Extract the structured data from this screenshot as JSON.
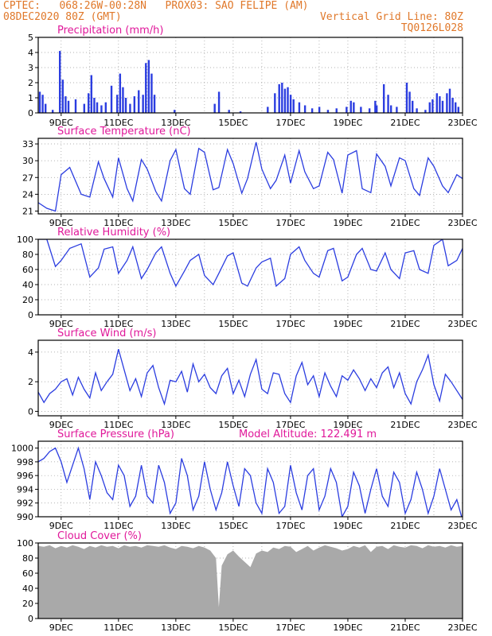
{
  "header": {
    "line1": "CPTEC:   068:26W-00:28N   PROX03: SAO FELIPE (AM)",
    "line2": "08DEC2020 80Z (GMT)",
    "right1": "Vertical Grid Line: 80Z",
    "right2": "TQ0126L028",
    "color": "#e0782a"
  },
  "colors": {
    "title": "#e0189a",
    "series": "#2b3de0",
    "cloud": "#a9a9a9",
    "grid": "#999999"
  },
  "x_ticks": [
    "9DEC",
    "11DEC",
    "13DEC",
    "15DEC",
    "17DEC",
    "19DEC",
    "21DEC",
    "23DEC"
  ],
  "chart_data": [
    {
      "type": "bar",
      "title": "Precipitation (mm/h)",
      "ylim": [
        0,
        5
      ],
      "yticks": [
        0,
        1,
        2,
        3,
        4,
        5
      ],
      "x_range_days": [
        8.2,
        23.0
      ],
      "values": [
        [
          8.25,
          1.4
        ],
        [
          8.35,
          1.2
        ],
        [
          8.45,
          0.6
        ],
        [
          8.7,
          0.2
        ],
        [
          8.95,
          4.1
        ],
        [
          9.05,
          2.2
        ],
        [
          9.15,
          1.1
        ],
        [
          9.25,
          0.8
        ],
        [
          9.5,
          0.9
        ],
        [
          9.8,
          0.6
        ],
        [
          9.95,
          1.3
        ],
        [
          10.05,
          2.5
        ],
        [
          10.15,
          1.0
        ],
        [
          10.25,
          0.7
        ],
        [
          10.4,
          0.5
        ],
        [
          10.55,
          0.7
        ],
        [
          10.75,
          1.8
        ],
        [
          10.95,
          1.2
        ],
        [
          11.05,
          2.6
        ],
        [
          11.15,
          1.7
        ],
        [
          11.25,
          1.0
        ],
        [
          11.4,
          0.6
        ],
        [
          11.55,
          1.1
        ],
        [
          11.7,
          1.5
        ],
        [
          11.85,
          1.2
        ],
        [
          11.95,
          3.3
        ],
        [
          12.05,
          3.5
        ],
        [
          12.15,
          2.6
        ],
        [
          12.25,
          1.2
        ],
        [
          12.95,
          0.2
        ],
        [
          14.35,
          0.6
        ],
        [
          14.5,
          1.4
        ],
        [
          14.85,
          0.2
        ],
        [
          15.25,
          0.1
        ],
        [
          16.2,
          0.4
        ],
        [
          16.45,
          1.3
        ],
        [
          16.6,
          1.9
        ],
        [
          16.7,
          2.0
        ],
        [
          16.8,
          1.6
        ],
        [
          16.9,
          1.7
        ],
        [
          17.0,
          1.2
        ],
        [
          17.1,
          0.9
        ],
        [
          17.3,
          0.7
        ],
        [
          17.5,
          0.5
        ],
        [
          17.75,
          0.3
        ],
        [
          18.0,
          0.4
        ],
        [
          18.3,
          0.2
        ],
        [
          18.6,
          0.3
        ],
        [
          18.95,
          0.4
        ],
        [
          19.1,
          0.8
        ],
        [
          19.2,
          0.7
        ],
        [
          19.45,
          0.4
        ],
        [
          19.75,
          0.3
        ],
        [
          19.95,
          0.8
        ],
        [
          20.0,
          0.5
        ],
        [
          20.25,
          1.9
        ],
        [
          20.4,
          1.2
        ],
        [
          20.5,
          0.5
        ],
        [
          20.7,
          0.4
        ],
        [
          21.05,
          2.0
        ],
        [
          21.15,
          1.4
        ],
        [
          21.25,
          0.8
        ],
        [
          21.4,
          0.3
        ],
        [
          21.7,
          0.2
        ],
        [
          21.85,
          0.7
        ],
        [
          21.95,
          0.9
        ],
        [
          22.1,
          1.3
        ],
        [
          22.2,
          1.1
        ],
        [
          22.3,
          0.8
        ],
        [
          22.45,
          1.3
        ],
        [
          22.55,
          1.6
        ],
        [
          22.65,
          1.0
        ],
        [
          22.75,
          0.7
        ],
        [
          22.85,
          0.4
        ]
      ]
    },
    {
      "type": "line",
      "title": "Surface Temperature (nC)",
      "ylim": [
        20.5,
        34
      ],
      "yticks": [
        21,
        24,
        27,
        30,
        33
      ],
      "x": [
        8.2,
        8.5,
        8.8,
        9.0,
        9.3,
        9.7,
        10.0,
        10.3,
        10.5,
        10.8,
        11.0,
        11.3,
        11.5,
        11.8,
        12.0,
        12.3,
        12.5,
        12.8,
        13.0,
        13.3,
        13.5,
        13.8,
        14.0,
        14.3,
        14.5,
        14.8,
        15.0,
        15.3,
        15.5,
        15.8,
        16.0,
        16.3,
        16.5,
        16.8,
        17.0,
        17.3,
        17.5,
        17.8,
        18.0,
        18.3,
        18.5,
        18.8,
        19.0,
        19.3,
        19.5,
        19.8,
        20.0,
        20.3,
        20.5,
        20.8,
        21.0,
        21.3,
        21.5,
        21.8,
        22.0,
        22.3,
        22.5,
        22.8,
        23.0
      ],
      "y": [
        22.5,
        21.5,
        21.0,
        27.5,
        28.8,
        24.0,
        23.5,
        29.8,
        26.8,
        23.5,
        30.5,
        25.0,
        22.8,
        30.2,
        28.5,
        24.5,
        22.8,
        30.0,
        32.0,
        25.0,
        24.0,
        32.2,
        31.5,
        24.8,
        25.2,
        32.0,
        29.5,
        24.2,
        26.8,
        33.3,
        28.5,
        25.0,
        26.5,
        31.0,
        26.0,
        31.8,
        28.0,
        25.0,
        25.5,
        31.5,
        30.2,
        24.2,
        31.0,
        31.8,
        25.0,
        24.3,
        31.2,
        29.0,
        25.5,
        30.5,
        30.0,
        25.0,
        23.8,
        30.5,
        29.0,
        25.5,
        24.3,
        27.5,
        26.8
      ]
    },
    {
      "type": "line",
      "title": "Relative Humidity (%)",
      "ylim": [
        0,
        100
      ],
      "yticks": [
        0,
        20,
        40,
        60,
        80,
        100
      ],
      "x": [
        8.2,
        8.5,
        8.8,
        9.0,
        9.3,
        9.7,
        10.0,
        10.3,
        10.5,
        10.8,
        11.0,
        11.3,
        11.5,
        11.8,
        12.0,
        12.3,
        12.5,
        12.8,
        13.0,
        13.3,
        13.5,
        13.8,
        14.0,
        14.3,
        14.5,
        14.8,
        15.0,
        15.3,
        15.5,
        15.8,
        16.0,
        16.3,
        16.5,
        16.8,
        17.0,
        17.3,
        17.5,
        17.8,
        18.0,
        18.3,
        18.5,
        18.8,
        19.0,
        19.3,
        19.5,
        19.8,
        20.0,
        20.3,
        20.5,
        20.8,
        21.0,
        21.3,
        21.5,
        21.8,
        22.0,
        22.3,
        22.5,
        22.8,
        23.0
      ],
      "y": [
        100,
        100,
        64,
        72,
        88,
        94,
        50,
        62,
        87,
        90,
        55,
        72,
        90,
        48,
        60,
        82,
        90,
        55,
        38,
        58,
        72,
        80,
        52,
        40,
        55,
        78,
        82,
        42,
        38,
        62,
        70,
        75,
        38,
        48,
        80,
        90,
        72,
        55,
        50,
        85,
        88,
        45,
        50,
        80,
        88,
        60,
        58,
        82,
        60,
        48,
        82,
        85,
        60,
        55,
        92,
        100,
        65,
        72,
        88
      ]
    },
    {
      "type": "line",
      "title": "Surface Wind (m/s)",
      "ylim": [
        -0.3,
        4.8
      ],
      "yticks": [
        0,
        2,
        4
      ],
      "x": [
        8.2,
        8.4,
        8.6,
        8.8,
        9.0,
        9.2,
        9.4,
        9.6,
        9.8,
        10.0,
        10.2,
        10.4,
        10.6,
        10.8,
        11.0,
        11.2,
        11.4,
        11.6,
        11.8,
        12.0,
        12.2,
        12.4,
        12.6,
        12.8,
        13.0,
        13.2,
        13.4,
        13.6,
        13.8,
        14.0,
        14.2,
        14.4,
        14.6,
        14.8,
        15.0,
        15.2,
        15.4,
        15.6,
        15.8,
        16.0,
        16.2,
        16.4,
        16.6,
        16.8,
        17.0,
        17.2,
        17.4,
        17.6,
        17.8,
        18.0,
        18.2,
        18.4,
        18.6,
        18.8,
        19.0,
        19.2,
        19.4,
        19.6,
        19.8,
        20.0,
        20.2,
        20.4,
        20.6,
        20.8,
        21.0,
        21.2,
        21.4,
        21.6,
        21.8,
        22.0,
        22.2,
        22.4,
        22.6,
        22.8,
        23.0
      ],
      "y": [
        1.3,
        0.6,
        1.2,
        1.5,
        2.0,
        2.2,
        1.1,
        2.3,
        1.5,
        0.9,
        2.6,
        1.4,
        2.0,
        2.5,
        4.2,
        2.8,
        1.4,
        2.2,
        1.0,
        2.6,
        3.1,
        1.6,
        0.5,
        2.1,
        2.0,
        2.7,
        1.3,
        3.2,
        2.0,
        2.5,
        1.6,
        1.2,
        2.4,
        2.9,
        1.2,
        2.1,
        1.0,
        2.5,
        3.5,
        1.5,
        1.2,
        2.6,
        2.5,
        1.2,
        0.6,
        2.4,
        3.3,
        1.8,
        2.4,
        1.0,
        2.6,
        1.7,
        1.0,
        2.4,
        2.1,
        2.8,
        2.2,
        1.4,
        2.2,
        1.6,
        2.6,
        3.0,
        1.6,
        2.6,
        1.2,
        0.5,
        2.0,
        2.8,
        3.8,
        1.8,
        0.7,
        2.5,
        2.0,
        1.4,
        0.8
      ]
    },
    {
      "type": "line",
      "title": "Surface Pressure (hPa)",
      "annotation": "Model Altitude: 122.491 m",
      "ylim": [
        990,
        1001
      ],
      "yticks": [
        990,
        992,
        994,
        996,
        998,
        1000
      ],
      "x": [
        8.2,
        8.4,
        8.6,
        8.8,
        9.0,
        9.2,
        9.4,
        9.6,
        9.8,
        10.0,
        10.2,
        10.4,
        10.6,
        10.8,
        11.0,
        11.2,
        11.4,
        11.6,
        11.8,
        12.0,
        12.2,
        12.4,
        12.6,
        12.8,
        13.0,
        13.2,
        13.4,
        13.6,
        13.8,
        14.0,
        14.2,
        14.4,
        14.6,
        14.8,
        15.0,
        15.2,
        15.4,
        15.6,
        15.8,
        16.0,
        16.2,
        16.4,
        16.6,
        16.8,
        17.0,
        17.2,
        17.4,
        17.6,
        17.8,
        18.0,
        18.2,
        18.4,
        18.6,
        18.8,
        19.0,
        19.2,
        19.4,
        19.6,
        19.8,
        20.0,
        20.2,
        20.4,
        20.6,
        20.8,
        21.0,
        21.2,
        21.4,
        21.6,
        21.8,
        22.0,
        22.2,
        22.4,
        22.6,
        22.8,
        23.0
      ],
      "y": [
        998,
        998.5,
        999.5,
        1000,
        998,
        995,
        997.5,
        1000,
        997,
        992.5,
        998,
        996,
        993.5,
        992.5,
        997.5,
        996,
        991.5,
        993,
        997.5,
        993,
        992,
        997.5,
        995,
        990.5,
        992,
        998.5,
        996,
        991,
        993,
        998,
        994,
        991,
        993.5,
        998,
        994.5,
        991.5,
        997,
        996,
        992,
        990.5,
        997,
        995,
        990.5,
        991.5,
        997.5,
        993.5,
        991,
        996,
        997,
        991,
        993,
        997,
        995,
        990,
        991.5,
        996.5,
        994.5,
        990.5,
        994,
        997,
        993,
        991.5,
        996.5,
        995,
        990.5,
        992.5,
        996.5,
        994,
        990.5,
        993,
        997,
        994,
        991,
        992.5,
        989.5
      ]
    },
    {
      "type": "area",
      "title": "Cloud Cover (%)",
      "ylim": [
        0,
        100
      ],
      "yticks": [
        0,
        20,
        40,
        60,
        80,
        100
      ],
      "x": [
        8.2,
        8.4,
        8.6,
        8.8,
        9.0,
        9.2,
        9.4,
        9.6,
        9.8,
        10.0,
        10.2,
        10.4,
        10.6,
        10.8,
        11.0,
        11.2,
        11.4,
        11.6,
        11.8,
        12.0,
        12.2,
        12.4,
        12.6,
        12.8,
        13.0,
        13.2,
        13.4,
        13.6,
        13.8,
        14.0,
        14.2,
        14.4,
        14.5,
        14.6,
        14.8,
        15.0,
        15.2,
        15.4,
        15.6,
        15.8,
        16.0,
        16.2,
        16.4,
        16.6,
        16.8,
        17.0,
        17.2,
        17.4,
        17.6,
        17.8,
        18.0,
        18.2,
        18.4,
        18.6,
        18.8,
        19.0,
        19.2,
        19.4,
        19.6,
        19.8,
        20.0,
        20.2,
        20.4,
        20.6,
        20.8,
        21.0,
        21.2,
        21.4,
        21.6,
        21.8,
        22.0,
        22.2,
        22.4,
        22.6,
        22.8,
        23.0
      ],
      "y": [
        96,
        95,
        97,
        93,
        96,
        94,
        97,
        95,
        92,
        96,
        94,
        97,
        95,
        96,
        93,
        97,
        95,
        96,
        94,
        97,
        96,
        95,
        97,
        94,
        92,
        96,
        95,
        93,
        96,
        94,
        90,
        80,
        15,
        70,
        85,
        90,
        82,
        75,
        68,
        86,
        90,
        88,
        94,
        92,
        96,
        95,
        88,
        92,
        96,
        90,
        94,
        97,
        95,
        93,
        90,
        92,
        96,
        94,
        97,
        88,
        95,
        96,
        92,
        97,
        95,
        94,
        97,
        96,
        93,
        97,
        95,
        96,
        94,
        97,
        95,
        96
      ]
    }
  ]
}
